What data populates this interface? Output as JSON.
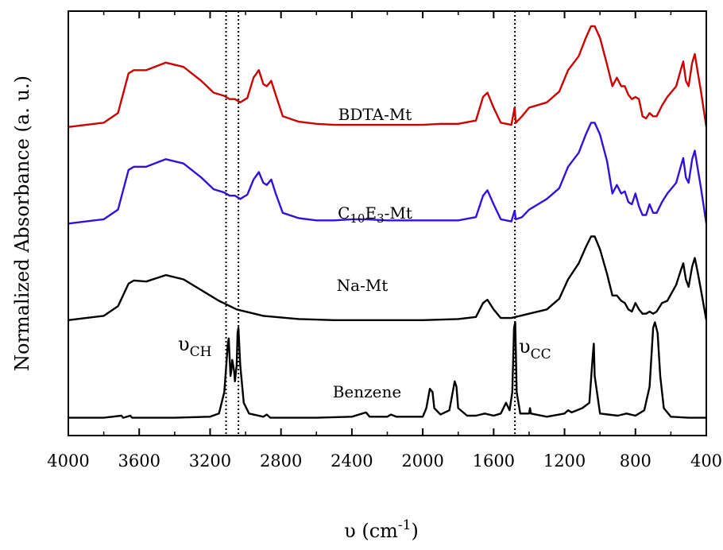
{
  "chart_data": {
    "type": "line",
    "xlabel": "υ (cm",
    "xlabel_superscript": "-1",
    "xlabel_suffix": ")",
    "ylabel": "Normalized Absorbance (a. u.)",
    "xlim": [
      4000,
      400
    ],
    "x_reversed": true,
    "y_ticks_shown": false,
    "x_ticks": [
      "4000",
      "3600",
      "3200",
      "2800",
      "2400",
      "2000",
      "1600",
      "1200",
      "800",
      "400"
    ],
    "x_tick_values": [
      4000,
      3600,
      3200,
      2800,
      2400,
      2000,
      1600,
      1200,
      800,
      400
    ],
    "reference_lines": [
      3110,
      3040,
      1480
    ],
    "annotations": [
      {
        "base": "υ",
        "sub": "CH"
      },
      {
        "base": "υ",
        "sub": "CC"
      }
    ],
    "series": [
      {
        "name": "BDTA-Mt",
        "label_parts": [
          "BDTA-Mt"
        ],
        "color": "#cc0000",
        "offset": 3.0,
        "points": [
          [
            4000,
            0.02
          ],
          [
            3900,
            0.04
          ],
          [
            3800,
            0.06
          ],
          [
            3720,
            0.15
          ],
          [
            3660,
            0.52
          ],
          [
            3630,
            0.55
          ],
          [
            3560,
            0.55
          ],
          [
            3450,
            0.62
          ],
          [
            3350,
            0.58
          ],
          [
            3250,
            0.45
          ],
          [
            3180,
            0.34
          ],
          [
            3120,
            0.31
          ],
          [
            3090,
            0.28
          ],
          [
            3060,
            0.28
          ],
          [
            3030,
            0.25
          ],
          [
            2990,
            0.29
          ],
          [
            2955,
            0.48
          ],
          [
            2925,
            0.55
          ],
          [
            2900,
            0.42
          ],
          [
            2880,
            0.4
          ],
          [
            2855,
            0.45
          ],
          [
            2830,
            0.32
          ],
          [
            2790,
            0.12
          ],
          [
            2700,
            0.07
          ],
          [
            2600,
            0.05
          ],
          [
            2500,
            0.04
          ],
          [
            2400,
            0.04
          ],
          [
            2320,
            0.04
          ],
          [
            2200,
            0.04
          ],
          [
            2000,
            0.04
          ],
          [
            1900,
            0.05
          ],
          [
            1800,
            0.05
          ],
          [
            1700,
            0.08
          ],
          [
            1660,
            0.3
          ],
          [
            1635,
            0.34
          ],
          [
            1600,
            0.2
          ],
          [
            1560,
            0.06
          ],
          [
            1500,
            0.04
          ],
          [
            1482,
            0.2
          ],
          [
            1475,
            0.06
          ],
          [
            1440,
            0.12
          ],
          [
            1400,
            0.2
          ],
          [
            1300,
            0.25
          ],
          [
            1230,
            0.35
          ],
          [
            1180,
            0.55
          ],
          [
            1120,
            0.68
          ],
          [
            1080,
            0.85
          ],
          [
            1050,
            0.96
          ],
          [
            1030,
            0.96
          ],
          [
            1000,
            0.85
          ],
          [
            960,
            0.6
          ],
          [
            930,
            0.4
          ],
          [
            905,
            0.48
          ],
          [
            880,
            0.4
          ],
          [
            860,
            0.4
          ],
          [
            840,
            0.32
          ],
          [
            820,
            0.28
          ],
          [
            800,
            0.3
          ],
          [
            780,
            0.28
          ],
          [
            760,
            0.12
          ],
          [
            740,
            0.1
          ],
          [
            720,
            0.15
          ],
          [
            700,
            0.12
          ],
          [
            680,
            0.12
          ],
          [
            650,
            0.22
          ],
          [
            620,
            0.3
          ],
          [
            570,
            0.4
          ],
          [
            545,
            0.55
          ],
          [
            530,
            0.63
          ],
          [
            515,
            0.45
          ],
          [
            500,
            0.4
          ],
          [
            480,
            0.62
          ],
          [
            465,
            0.7
          ],
          [
            450,
            0.55
          ],
          [
            430,
            0.35
          ],
          [
            400,
            0.02
          ]
        ]
      },
      {
        "name": "C10E3-Mt",
        "label_parts": [
          "C",
          "10",
          "E",
          "3",
          "-Mt"
        ],
        "color": "#3311dd",
        "offset": 2.0,
        "points": [
          [
            4000,
            0.02
          ],
          [
            3900,
            0.04
          ],
          [
            3800,
            0.06
          ],
          [
            3720,
            0.15
          ],
          [
            3660,
            0.52
          ],
          [
            3630,
            0.55
          ],
          [
            3560,
            0.55
          ],
          [
            3450,
            0.62
          ],
          [
            3350,
            0.58
          ],
          [
            3250,
            0.45
          ],
          [
            3180,
            0.34
          ],
          [
            3120,
            0.31
          ],
          [
            3090,
            0.28
          ],
          [
            3060,
            0.28
          ],
          [
            3030,
            0.25
          ],
          [
            2990,
            0.29
          ],
          [
            2955,
            0.43
          ],
          [
            2925,
            0.5
          ],
          [
            2900,
            0.4
          ],
          [
            2880,
            0.38
          ],
          [
            2855,
            0.43
          ],
          [
            2830,
            0.3
          ],
          [
            2790,
            0.12
          ],
          [
            2700,
            0.07
          ],
          [
            2600,
            0.05
          ],
          [
            2500,
            0.05
          ],
          [
            2400,
            0.06
          ],
          [
            2320,
            0.06
          ],
          [
            2200,
            0.05
          ],
          [
            2000,
            0.05
          ],
          [
            1900,
            0.05
          ],
          [
            1800,
            0.05
          ],
          [
            1700,
            0.08
          ],
          [
            1660,
            0.28
          ],
          [
            1635,
            0.33
          ],
          [
            1600,
            0.2
          ],
          [
            1560,
            0.06
          ],
          [
            1500,
            0.04
          ],
          [
            1482,
            0.14
          ],
          [
            1475,
            0.06
          ],
          [
            1440,
            0.08
          ],
          [
            1400,
            0.15
          ],
          [
            1300,
            0.25
          ],
          [
            1230,
            0.35
          ],
          [
            1180,
            0.55
          ],
          [
            1120,
            0.68
          ],
          [
            1080,
            0.85
          ],
          [
            1050,
            0.96
          ],
          [
            1030,
            0.96
          ],
          [
            1000,
            0.85
          ],
          [
            960,
            0.6
          ],
          [
            930,
            0.3
          ],
          [
            905,
            0.38
          ],
          [
            880,
            0.3
          ],
          [
            860,
            0.32
          ],
          [
            840,
            0.22
          ],
          [
            820,
            0.2
          ],
          [
            800,
            0.3
          ],
          [
            780,
            0.18
          ],
          [
            760,
            0.1
          ],
          [
            740,
            0.1
          ],
          [
            720,
            0.2
          ],
          [
            700,
            0.12
          ],
          [
            680,
            0.12
          ],
          [
            650,
            0.22
          ],
          [
            620,
            0.3
          ],
          [
            570,
            0.4
          ],
          [
            545,
            0.55
          ],
          [
            530,
            0.63
          ],
          [
            515,
            0.45
          ],
          [
            500,
            0.4
          ],
          [
            480,
            0.62
          ],
          [
            465,
            0.7
          ],
          [
            450,
            0.55
          ],
          [
            430,
            0.35
          ],
          [
            400,
            0.02
          ]
        ]
      },
      {
        "name": "Na-Mt",
        "label_parts": [
          "Na-Mt"
        ],
        "color": "#000000",
        "offset": 1.0,
        "points": [
          [
            4000,
            0.02
          ],
          [
            3900,
            0.04
          ],
          [
            3800,
            0.06
          ],
          [
            3720,
            0.15
          ],
          [
            3660,
            0.36
          ],
          [
            3630,
            0.39
          ],
          [
            3560,
            0.38
          ],
          [
            3450,
            0.44
          ],
          [
            3350,
            0.4
          ],
          [
            3250,
            0.3
          ],
          [
            3150,
            0.2
          ],
          [
            3050,
            0.12
          ],
          [
            2900,
            0.06
          ],
          [
            2700,
            0.03
          ],
          [
            2500,
            0.02
          ],
          [
            2300,
            0.02
          ],
          [
            2000,
            0.02
          ],
          [
            1800,
            0.03
          ],
          [
            1700,
            0.05
          ],
          [
            1660,
            0.18
          ],
          [
            1635,
            0.21
          ],
          [
            1600,
            0.12
          ],
          [
            1560,
            0.04
          ],
          [
            1500,
            0.04
          ],
          [
            1400,
            0.08
          ],
          [
            1300,
            0.12
          ],
          [
            1230,
            0.22
          ],
          [
            1180,
            0.4
          ],
          [
            1120,
            0.55
          ],
          [
            1080,
            0.7
          ],
          [
            1050,
            0.8
          ],
          [
            1030,
            0.8
          ],
          [
            1000,
            0.68
          ],
          [
            960,
            0.45
          ],
          [
            930,
            0.25
          ],
          [
            905,
            0.25
          ],
          [
            880,
            0.2
          ],
          [
            860,
            0.18
          ],
          [
            840,
            0.12
          ],
          [
            820,
            0.1
          ],
          [
            800,
            0.18
          ],
          [
            780,
            0.12
          ],
          [
            760,
            0.08
          ],
          [
            740,
            0.08
          ],
          [
            720,
            0.1
          ],
          [
            700,
            0.08
          ],
          [
            680,
            0.1
          ],
          [
            650,
            0.18
          ],
          [
            620,
            0.2
          ],
          [
            570,
            0.35
          ],
          [
            545,
            0.48
          ],
          [
            530,
            0.55
          ],
          [
            515,
            0.4
          ],
          [
            500,
            0.33
          ],
          [
            480,
            0.52
          ],
          [
            465,
            0.6
          ],
          [
            450,
            0.48
          ],
          [
            430,
            0.3
          ],
          [
            400,
            0.02
          ]
        ]
      },
      {
        "name": "Benzene",
        "label_parts": [
          "Benzene"
        ],
        "color": "#000000",
        "offset": 0.0,
        "points": [
          [
            4000,
            0.01
          ],
          [
            3800,
            0.01
          ],
          [
            3700,
            0.03
          ],
          [
            3690,
            0.01
          ],
          [
            3650,
            0.03
          ],
          [
            3640,
            0.01
          ],
          [
            3400,
            0.01
          ],
          [
            3200,
            0.02
          ],
          [
            3150,
            0.05
          ],
          [
            3120,
            0.25
          ],
          [
            3100,
            0.7
          ],
          [
            3095,
            0.75
          ],
          [
            3085,
            0.4
          ],
          [
            3080,
            0.45
          ],
          [
            3075,
            0.55
          ],
          [
            3065,
            0.45
          ],
          [
            3060,
            0.35
          ],
          [
            3050,
            0.5
          ],
          [
            3045,
            0.8
          ],
          [
            3040,
            0.85
          ],
          [
            3030,
            0.5
          ],
          [
            3010,
            0.15
          ],
          [
            2980,
            0.05
          ],
          [
            2900,
            0.02
          ],
          [
            2880,
            0.04
          ],
          [
            2860,
            0.01
          ],
          [
            2600,
            0.01
          ],
          [
            2400,
            0.02
          ],
          [
            2320,
            0.06
          ],
          [
            2300,
            0.02
          ],
          [
            2200,
            0.02
          ],
          [
            2180,
            0.04
          ],
          [
            2150,
            0.02
          ],
          [
            2000,
            0.02
          ],
          [
            1980,
            0.1
          ],
          [
            1960,
            0.28
          ],
          [
            1945,
            0.25
          ],
          [
            1935,
            0.1
          ],
          [
            1900,
            0.04
          ],
          [
            1850,
            0.08
          ],
          [
            1820,
            0.35
          ],
          [
            1810,
            0.3
          ],
          [
            1800,
            0.1
          ],
          [
            1750,
            0.03
          ],
          [
            1700,
            0.03
          ],
          [
            1650,
            0.05
          ],
          [
            1600,
            0.03
          ],
          [
            1560,
            0.05
          ],
          [
            1530,
            0.15
          ],
          [
            1510,
            0.08
          ],
          [
            1495,
            0.25
          ],
          [
            1485,
            0.85
          ],
          [
            1478,
            0.9
          ],
          [
            1470,
            0.25
          ],
          [
            1450,
            0.05
          ],
          [
            1400,
            0.05
          ],
          [
            1395,
            0.1
          ],
          [
            1390,
            0.05
          ],
          [
            1300,
            0.02
          ],
          [
            1200,
            0.05
          ],
          [
            1180,
            0.08
          ],
          [
            1160,
            0.06
          ],
          [
            1100,
            0.1
          ],
          [
            1060,
            0.15
          ],
          [
            1040,
            0.6
          ],
          [
            1035,
            0.7
          ],
          [
            1030,
            0.4
          ],
          [
            1000,
            0.05
          ],
          [
            900,
            0.03
          ],
          [
            850,
            0.05
          ],
          [
            800,
            0.03
          ],
          [
            750,
            0.08
          ],
          [
            720,
            0.3
          ],
          [
            700,
            0.85
          ],
          [
            690,
            0.9
          ],
          [
            675,
            0.8
          ],
          [
            660,
            0.4
          ],
          [
            640,
            0.1
          ],
          [
            600,
            0.02
          ],
          [
            500,
            0.01
          ],
          [
            400,
            0.01
          ]
        ]
      }
    ]
  }
}
